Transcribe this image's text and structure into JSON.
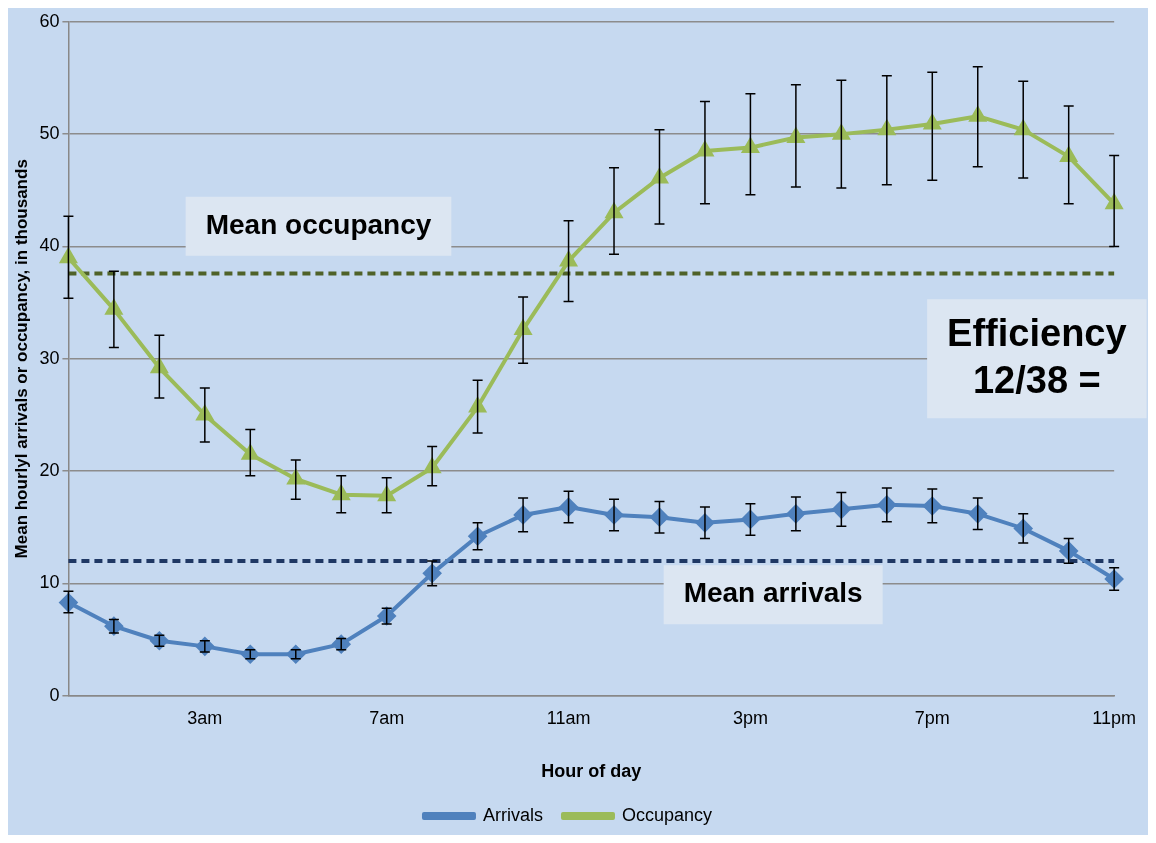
{
  "chart_data": {
    "type": "line",
    "xlabel": "Hour of day",
    "ylabel": "Mean hourlyl arrivals or occupancy, in thousands",
    "categories": [
      null,
      null,
      null,
      "3am",
      null,
      null,
      null,
      "7am",
      null,
      null,
      null,
      "11am",
      null,
      null,
      null,
      "3pm",
      null,
      null,
      null,
      "7pm",
      null,
      null,
      null,
      "11pm"
    ],
    "series": [
      {
        "name": "Arrivals",
        "color": "#4f81bd",
        "marker": "diamond",
        "values": [
          8.3,
          6.2,
          4.9,
          4.4,
          3.7,
          3.7,
          4.6,
          7.1,
          10.9,
          14.2,
          16.1,
          16.8,
          16.1,
          15.9,
          15.4,
          15.7,
          16.2,
          16.6,
          17.0,
          16.9,
          16.2,
          14.9,
          12.9,
          10.4
        ],
        "errors": [
          [
            7.4,
            9.3
          ],
          [
            5.6,
            6.8
          ],
          [
            4.4,
            5.4
          ],
          [
            3.9,
            4.9
          ],
          [
            3.3,
            4.1
          ],
          [
            3.3,
            4.1
          ],
          [
            4.1,
            5.1
          ],
          [
            6.4,
            7.8
          ],
          [
            9.8,
            12.0
          ],
          [
            13.0,
            15.4
          ],
          [
            14.6,
            17.6
          ],
          [
            15.4,
            18.2
          ],
          [
            14.7,
            17.5
          ],
          [
            14.5,
            17.3
          ],
          [
            14.0,
            16.8
          ],
          [
            14.3,
            17.1
          ],
          [
            14.7,
            17.7
          ],
          [
            15.1,
            18.1
          ],
          [
            15.5,
            18.5
          ],
          [
            15.4,
            18.4
          ],
          [
            14.8,
            17.6
          ],
          [
            13.6,
            16.2
          ],
          [
            11.8,
            14.0
          ],
          [
            9.4,
            11.4
          ]
        ]
      },
      {
        "name": "Occupancy",
        "color": "#9bbb59",
        "marker": "triangle",
        "values": [
          39.0,
          34.4,
          29.2,
          25.0,
          21.5,
          19.3,
          17.9,
          17.8,
          20.3,
          25.7,
          32.6,
          38.7,
          43.0,
          46.1,
          48.5,
          48.8,
          49.7,
          50.0,
          50.4,
          50.9,
          51.6,
          50.4,
          48.0,
          43.8
        ],
        "errors": [
          [
            35.4,
            42.7
          ],
          [
            31.0,
            37.8
          ],
          [
            26.5,
            32.1
          ],
          [
            22.6,
            27.4
          ],
          [
            19.6,
            23.7
          ],
          [
            17.5,
            21.0
          ],
          [
            16.3,
            19.6
          ],
          [
            16.3,
            19.4
          ],
          [
            18.7,
            22.2
          ],
          [
            23.4,
            28.1
          ],
          [
            29.6,
            35.5
          ],
          [
            35.1,
            42.3
          ],
          [
            39.3,
            47.0
          ],
          [
            42.0,
            50.4
          ],
          [
            43.8,
            52.9
          ],
          [
            44.6,
            53.6
          ],
          [
            45.3,
            54.4
          ],
          [
            45.2,
            54.8
          ],
          [
            45.5,
            55.2
          ],
          [
            45.9,
            55.5
          ],
          [
            47.1,
            56.0
          ],
          [
            46.1,
            54.7
          ],
          [
            43.8,
            52.5
          ],
          [
            40.0,
            48.1
          ]
        ]
      }
    ],
    "ylim": [
      0,
      60
    ],
    "yticks": [
      0,
      10,
      20,
      30,
      40,
      50,
      60
    ],
    "grid": "y",
    "legend": "bottom",
    "line_style": "solid",
    "ref_lines": [
      {
        "axis": "y",
        "value": 37.6,
        "label": "Mean occupancy",
        "color": "#4f6228",
        "line_style": "dashed"
      },
      {
        "axis": "y",
        "value": 12.0,
        "label": "Mean arrivals",
        "color": "#1f3864",
        "line_style": "dashed"
      }
    ],
    "annotations": [
      "Efficiency",
      "12/38 ="
    ]
  }
}
